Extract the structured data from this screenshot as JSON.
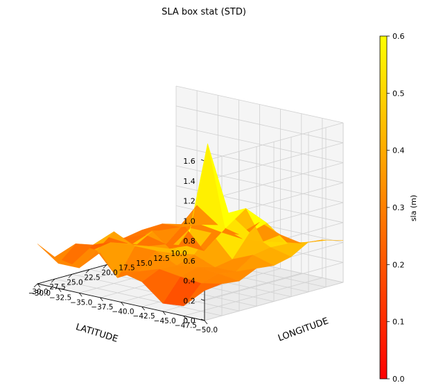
{
  "chart_data": {
    "type": "surface3d",
    "title": "SLA box stat (STD)",
    "xlabel": "LATITUDE",
    "ylabel": "LONGITUDE",
    "zlabel": "",
    "x_ticks": [
      "−50.0",
      "−47.5",
      "−45.0",
      "−42.5",
      "−40.0",
      "−37.5",
      "−35.0",
      "−32.5",
      "−30.0"
    ],
    "y_ticks": [
      "30.0",
      "27.5",
      "25.0",
      "22.5",
      "20.0",
      "17.5",
      "15.0",
      "12.5",
      "10.0"
    ],
    "z_ticks": [
      "0.0",
      "0.2",
      "0.4",
      "0.6",
      "0.8",
      "1.0",
      "1.2",
      "1.4",
      "1.6"
    ],
    "xlim": [
      -50,
      -30
    ],
    "ylim": [
      10,
      30
    ],
    "zlim": [
      0,
      1.6
    ],
    "colormap": "autumn",
    "colorbar": {
      "label": "sla (m)",
      "range": [
        0,
        0.6
      ],
      "ticks": [
        "0.0",
        "0.1",
        "0.2",
        "0.3",
        "0.4",
        "0.5",
        "0.6"
      ]
    },
    "lat": [
      -50,
      -47.5,
      -45,
      -42.5,
      -40,
      -37.5,
      -35,
      -32.5,
      -30
    ],
    "lon": [
      10,
      12.5,
      15,
      17.5,
      20,
      22.5,
      25,
      27.5,
      30
    ],
    "values_by_lat": [
      [
        0.42,
        0.47,
        0.5,
        0.4,
        0.36,
        0.38,
        0.3,
        0.32,
        0.3
      ],
      [
        0.38,
        0.4,
        0.44,
        0.45,
        0.42,
        0.3,
        0.33,
        0.28,
        0.1
      ],
      [
        0.3,
        0.36,
        0.6,
        0.55,
        0.33,
        0.3,
        0.35,
        0.3,
        0.08
      ],
      [
        0.34,
        0.32,
        0.7,
        0.7,
        0.55,
        0.38,
        0.32,
        0.33,
        0.25
      ],
      [
        0.42,
        0.3,
        0.45,
        1.35,
        0.55,
        0.35,
        0.42,
        0.26,
        0.3
      ],
      [
        0.25,
        0.32,
        0.18,
        0.28,
        0.3,
        0.52,
        0.42,
        0.15,
        0.45
      ],
      [
        0.3,
        0.35,
        0.4,
        0.25,
        0.28,
        0.34,
        0.52,
        0.38,
        0.25
      ],
      [
        0.45,
        0.28,
        0.36,
        0.3,
        0.26,
        0.32,
        0.34,
        0.4,
        0.25
      ],
      [
        0.15,
        0.2,
        0.25,
        0.22,
        0.28,
        0.18,
        0.1,
        0.22,
        0.4
      ]
    ]
  }
}
